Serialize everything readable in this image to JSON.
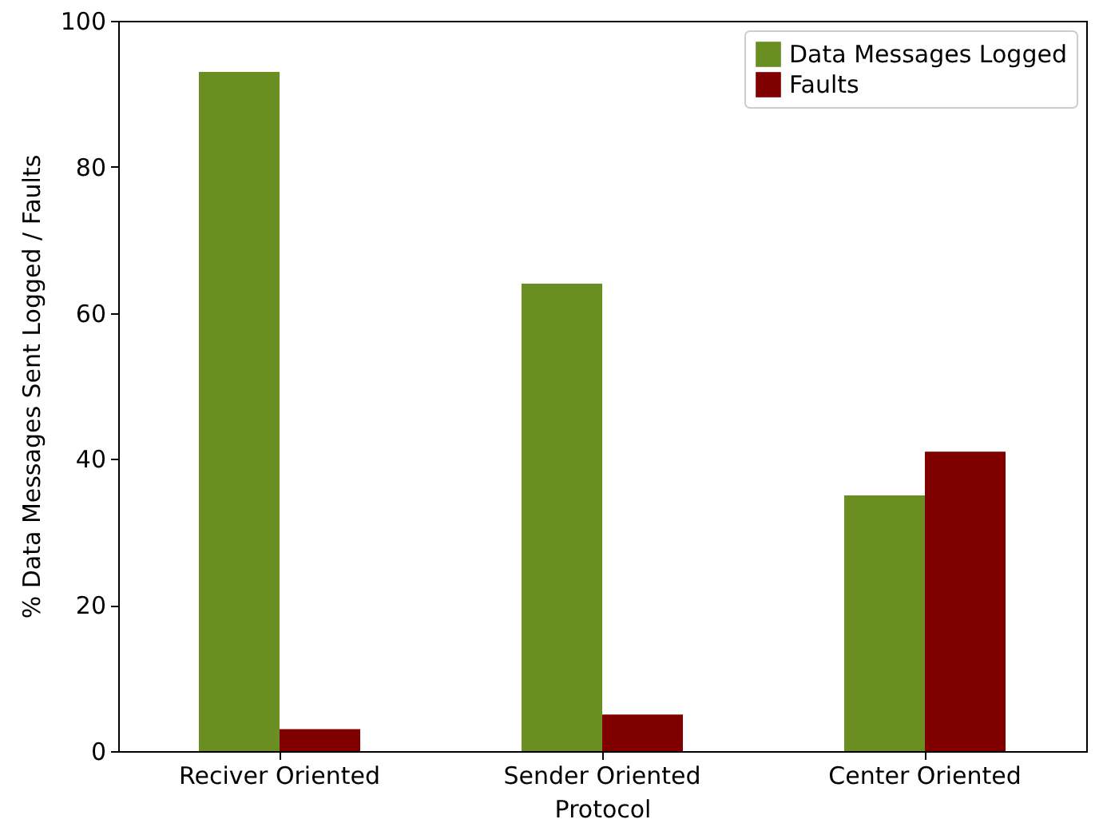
{
  "chart_data": {
    "type": "bar",
    "xlabel": "Protocol",
    "ylabel": "% Data Messages Sent Logged / Faults",
    "categories": [
      "Reciver Oriented",
      "Sender Oriented",
      "Center Oriented"
    ],
    "series": [
      {
        "name": "Data Messages Logged",
        "color": "#6b8e23",
        "values": [
          93,
          64,
          35
        ]
      },
      {
        "name": "Faults",
        "color": "#800000",
        "values": [
          3,
          5,
          41
        ]
      }
    ],
    "ylim": [
      0,
      100
    ],
    "yticks": [
      0,
      20,
      40,
      60,
      80,
      100
    ],
    "legend": "top right"
  }
}
